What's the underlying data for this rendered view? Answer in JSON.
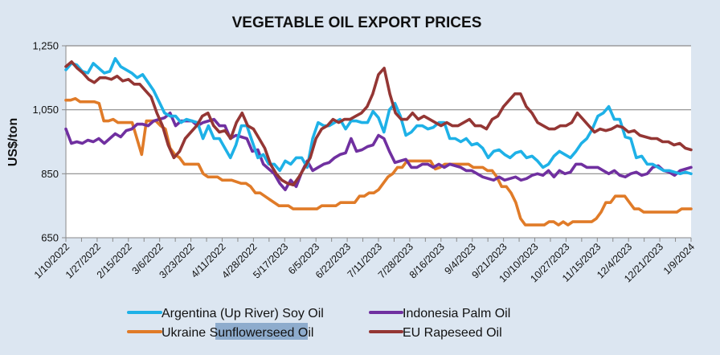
{
  "chart_data": {
    "type": "line",
    "title": "VEGETABLE OIL EXPORT PRICES",
    "xlabel": "",
    "ylabel": "US$/ton",
    "ylim": [
      650,
      1250
    ],
    "yticks": [
      650,
      850,
      1050,
      1250
    ],
    "ytick_labels": [
      "650",
      "850",
      "1,050",
      "1,250"
    ],
    "grid": "horizontal",
    "legend_position": "bottom",
    "x_tick_labels": [
      "1/10/2022",
      "1/27/2022",
      "2/15/2022",
      "3/6/2022",
      "3/23/2022",
      "4/11/2022",
      "4/28/2022",
      "5/17/2023",
      "6/5/2023",
      "6/22/2023",
      "7/11/2023",
      "7/28/2023",
      "8/16/2023",
      "9/4/2023",
      "9/21/2023",
      "10/10/2023",
      "10/27/2023",
      "11/15/2023",
      "12/4/2023",
      "12/21/2023",
      "1/9/2024"
    ],
    "x_note": "Each series has 4 samples per tick interval; sample i maps to fractional tick position i/4.",
    "series": [
      {
        "name": "Argentina (Up River) Soy Oil",
        "color": "#1eb1e7",
        "values": [
          1175,
          1195,
          1190,
          1170,
          1165,
          1195,
          1180,
          1165,
          1170,
          1210,
          1185,
          1175,
          1165,
          1150,
          1160,
          1135,
          1110,
          1075,
          1040,
          1030,
          1030,
          1010,
          1020,
          1015,
          1010,
          960,
          1000,
          960,
          960,
          930,
          900,
          940,
          1000,
          1000,
          950,
          900,
          910,
          880,
          880,
          860,
          890,
          880,
          900,
          900,
          870,
          960,
          1010,
          1000,
          1000,
          1010,
          1020,
          990,
          1015,
          1015,
          1010,
          1010,
          1045,
          1025,
          980,
          1050,
          1070,
          1030,
          970,
          980,
          1000,
          1000,
          990,
          995,
          1010,
          1010,
          960,
          960,
          950,
          960,
          940,
          945,
          930,
          900,
          920,
          925,
          910,
          900,
          915,
          920,
          900,
          905,
          890,
          870,
          880,
          905,
          920,
          910,
          900,
          920,
          945,
          960,
          990,
          1030,
          1040,
          1060,
          1020,
          1020,
          965,
          960,
          900,
          905,
          880,
          880,
          870,
          860,
          860,
          855,
          850,
          855,
          850
        ]
      },
      {
        "name": "Indonesia Palm Oil",
        "color": "#7030a0",
        "values": [
          990,
          945,
          950,
          945,
          955,
          950,
          960,
          945,
          960,
          975,
          965,
          985,
          990,
          1005,
          1005,
          1000,
          1015,
          1020,
          1025,
          1040,
          1000,
          1015,
          1015,
          1015,
          1000,
          1010,
          1015,
          1020,
          1000,
          1000,
          960,
          970,
          965,
          960,
          920,
          925,
          880,
          865,
          850,
          820,
          800,
          830,
          810,
          855,
          890,
          860,
          870,
          880,
          885,
          900,
          910,
          915,
          960,
          920,
          925,
          935,
          940,
          970,
          960,
          920,
          885,
          890,
          895,
          870,
          870,
          880,
          880,
          870,
          880,
          870,
          880,
          875,
          870,
          860,
          860,
          850,
          840,
          835,
          830,
          840,
          830,
          835,
          840,
          830,
          835,
          845,
          850,
          845,
          860,
          840,
          860,
          850,
          855,
          880,
          880,
          870,
          870,
          870,
          860,
          850,
          860,
          845,
          840,
          850,
          855,
          845,
          850,
          870,
          875,
          860,
          855,
          845,
          860,
          865,
          870
        ]
      },
      {
        "name": "Ukraine Sunflowerseed Oil",
        "color": "#e07b28",
        "values": [
          1080,
          1080,
          1085,
          1075,
          1075,
          1075,
          1075,
          1070,
          1015,
          1015,
          1020,
          1010,
          1010,
          1010,
          1010,
          960,
          910,
          1015,
          1015,
          1015,
          1000,
          990,
          930,
          910,
          900,
          880,
          880,
          880,
          880,
          850,
          840,
          840,
          840,
          830,
          830,
          830,
          825,
          820,
          820,
          810,
          790,
          790,
          780,
          770,
          760,
          750,
          750,
          750,
          740,
          740,
          740,
          740,
          740,
          740,
          750,
          750,
          750,
          750,
          760,
          760,
          760,
          760,
          780,
          780,
          790,
          790,
          800,
          820,
          840,
          850,
          870,
          870,
          890,
          890,
          890,
          890,
          890,
          890,
          865,
          870,
          880,
          880,
          880,
          880,
          880,
          880,
          870,
          870,
          870,
          860,
          860,
          840,
          810,
          810,
          790,
          760,
          710,
          690,
          690,
          690,
          690,
          690,
          700,
          700,
          690,
          700,
          690,
          700,
          700,
          700,
          700,
          700,
          710,
          730,
          760,
          760,
          780,
          780,
          780,
          760,
          740,
          740,
          730,
          730,
          730,
          730,
          730,
          730,
          730,
          730,
          740,
          740,
          740
        ]
      },
      {
        "name": "EU Rapeseed Oil",
        "color": "#943634",
        "values": [
          1185,
          1200,
          1180,
          1165,
          1145,
          1135,
          1150,
          1150,
          1145,
          1155,
          1140,
          1145,
          1130,
          1130,
          1110,
          1090,
          1040,
          1000,
          940,
          900,
          920,
          960,
          980,
          1000,
          1030,
          1040,
          1000,
          980,
          985,
          960,
          1010,
          1040,
          1000,
          990,
          960,
          930,
          880,
          850,
          830,
          820,
          815,
          840,
          870,
          900,
          960,
          990,
          1000,
          1020,
          1010,
          1020,
          1020,
          1030,
          1040,
          1060,
          1100,
          1160,
          1180,
          1100,
          1040,
          1020,
          1020,
          1040,
          1020,
          1030,
          1020,
          1010,
          1000,
          1010,
          1000,
          1000,
          1010,
          1020,
          1000,
          1000,
          990,
          1020,
          1030,
          1060,
          1080,
          1100,
          1100,
          1060,
          1040,
          1010,
          1000,
          990,
          990,
          1000,
          1000,
          1010,
          1040,
          1020,
          1000,
          980,
          990,
          985,
          990,
          1000,
          995,
          980,
          985,
          970,
          965,
          960,
          960,
          950,
          950,
          940,
          945,
          930,
          925
        ]
      }
    ]
  },
  "legend": {
    "items": [
      {
        "label": "Argentina (Up River) Soy Oil",
        "color": "#1eb1e7"
      },
      {
        "label": "Indonesia Palm Oil",
        "color": "#7030a0"
      },
      {
        "label": "Ukraine Sunflowerseed Oil",
        "color": "#e07b28",
        "highlighted_word": "Sunflowerseed"
      },
      {
        "label": "EU Rapeseed Oil",
        "color": "#943634"
      }
    ]
  },
  "legend_text": {
    "ukraine_prefix": "Ukraine ",
    "ukraine_highlight": "Sunflowerseed",
    "ukraine_suffix": " Oil"
  }
}
